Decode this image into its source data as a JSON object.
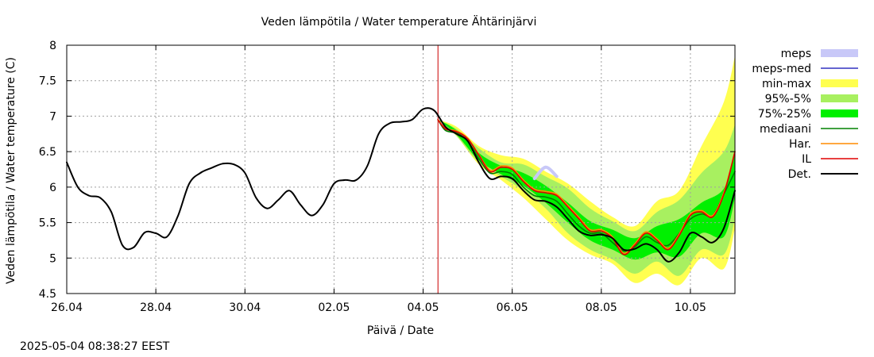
{
  "timestamp": "2025-05-04  08:38:27 EEST",
  "chart_data": {
    "type": "line",
    "title": "Veden lämpötila / Water temperature Ähtärinjärvi",
    "xlabel": "Päivä / Date",
    "ylabel": "Veden lämpötila / Water temperature (C)",
    "ylim": [
      4.5,
      8
    ],
    "xlim": [
      "2025-04-26 00:00",
      "2025-05-11 00:00"
    ],
    "x_ticks": [
      "26.04",
      "28.04",
      "30.04",
      "02.05",
      "04.05",
      "06.05",
      "08.05",
      "10.05"
    ],
    "y_ticks": [
      "4.5",
      "5",
      "5.5",
      "6",
      "6.5",
      "7",
      "7.5",
      "8"
    ],
    "grid": true,
    "legend_position": "right",
    "forecast_start": "2025-05-04 08:00",
    "colors": {
      "meps": "#c8c8f8",
      "meps_med": "#3030c0",
      "min_max": "#ffff50",
      "p95_5": "#a8f060",
      "p75_25": "#00f000",
      "mediaani": "#008000",
      "har": "#ff8c00",
      "il": "#e00000",
      "det": "#000000",
      "forecast_line": "#cc0000",
      "grid": "#a0a0a0"
    },
    "legend": [
      "meps",
      "meps-med",
      "min-max",
      "95%-5%",
      "75%-25%",
      "mediaani",
      "Har.",
      "IL",
      "Det."
    ],
    "series": [
      {
        "name": "Det.",
        "x": [
          "2025-04-26 00:00",
          "2025-04-26 06:00",
          "2025-04-26 12:00",
          "2025-04-26 18:00",
          "2025-04-27 00:00",
          "2025-04-27 06:00",
          "2025-04-27 12:00",
          "2025-04-27 18:00",
          "2025-04-28 00:00",
          "2025-04-28 06:00",
          "2025-04-28 12:00",
          "2025-04-28 18:00",
          "2025-04-29 00:00",
          "2025-04-29 06:00",
          "2025-04-29 12:00",
          "2025-04-29 18:00",
          "2025-04-30 00:00",
          "2025-04-30 06:00",
          "2025-04-30 12:00",
          "2025-04-30 18:00",
          "2025-05-01 00:00",
          "2025-05-01 06:00",
          "2025-05-01 12:00",
          "2025-05-01 18:00",
          "2025-05-02 00:00",
          "2025-05-02 06:00",
          "2025-05-02 12:00",
          "2025-05-02 18:00",
          "2025-05-03 00:00",
          "2025-05-03 06:00",
          "2025-05-03 12:00",
          "2025-05-03 18:00",
          "2025-05-04 00:00",
          "2025-05-04 06:00",
          "2025-05-04 12:00",
          "2025-05-04 18:00",
          "2025-05-05 00:00",
          "2025-05-05 06:00",
          "2025-05-05 12:00",
          "2025-05-05 18:00",
          "2025-05-06 00:00",
          "2025-05-06 06:00",
          "2025-05-06 12:00",
          "2025-05-06 18:00",
          "2025-05-07 00:00",
          "2025-05-07 06:00",
          "2025-05-07 12:00",
          "2025-05-07 18:00",
          "2025-05-08 00:00",
          "2025-05-08 06:00",
          "2025-05-08 12:00",
          "2025-05-08 18:00",
          "2025-05-09 00:00",
          "2025-05-09 06:00",
          "2025-05-09 12:00",
          "2025-05-09 18:00",
          "2025-05-10 00:00",
          "2025-05-10 06:00",
          "2025-05-10 12:00",
          "2025-05-10 18:00",
          "2025-05-11 00:00"
        ],
        "values": [
          6.35,
          6.0,
          5.88,
          5.85,
          5.65,
          5.18,
          5.15,
          5.36,
          5.35,
          5.3,
          5.6,
          6.05,
          6.2,
          6.27,
          6.33,
          6.32,
          6.2,
          5.85,
          5.7,
          5.82,
          5.95,
          5.75,
          5.6,
          5.75,
          6.05,
          6.1,
          6.1,
          6.3,
          6.75,
          6.9,
          6.92,
          6.95,
          7.1,
          7.08,
          6.85,
          6.75,
          6.65,
          6.35,
          6.12,
          6.15,
          6.12,
          5.95,
          5.82,
          5.8,
          5.72,
          5.55,
          5.38,
          5.32,
          5.33,
          5.28,
          5.12,
          5.13,
          5.2,
          5.12,
          4.95,
          5.08,
          5.35,
          5.3,
          5.22,
          5.42,
          5.95
        ]
      },
      {
        "name": "IL",
        "x": [
          "2025-05-04 08:00",
          "2025-05-04 12:00",
          "2025-05-04 18:00",
          "2025-05-05 00:00",
          "2025-05-05 06:00",
          "2025-05-05 12:00",
          "2025-05-05 18:00",
          "2025-05-06 00:00",
          "2025-05-06 06:00",
          "2025-05-06 12:00",
          "2025-05-06 18:00",
          "2025-05-07 00:00",
          "2025-05-07 06:00",
          "2025-05-07 12:00",
          "2025-05-07 18:00",
          "2025-05-08 00:00",
          "2025-05-08 06:00",
          "2025-05-08 12:00",
          "2025-05-08 18:00",
          "2025-05-09 00:00",
          "2025-05-09 06:00",
          "2025-05-09 12:00",
          "2025-05-09 18:00",
          "2025-05-10 00:00",
          "2025-05-10 06:00",
          "2025-05-10 12:00",
          "2025-05-10 18:00",
          "2025-05-11 00:00"
        ],
        "values": [
          6.95,
          6.82,
          6.78,
          6.68,
          6.45,
          6.22,
          6.28,
          6.25,
          6.08,
          5.95,
          5.92,
          5.88,
          5.72,
          5.55,
          5.38,
          5.38,
          5.28,
          5.05,
          5.18,
          5.35,
          5.25,
          5.12,
          5.32,
          5.6,
          5.65,
          5.58,
          5.9,
          6.5
        ]
      },
      {
        "name": "mediaani",
        "x": [
          "2025-05-04 08:00",
          "2025-05-04 12:00",
          "2025-05-04 18:00",
          "2025-05-05 00:00",
          "2025-05-05 06:00",
          "2025-05-05 12:00",
          "2025-05-05 18:00",
          "2025-05-06 00:00",
          "2025-05-06 06:00",
          "2025-05-06 12:00",
          "2025-05-06 18:00",
          "2025-05-07 00:00",
          "2025-05-07 06:00",
          "2025-05-07 12:00",
          "2025-05-07 18:00",
          "2025-05-08 00:00",
          "2025-05-08 06:00",
          "2025-05-08 12:00",
          "2025-05-08 18:00",
          "2025-05-09 00:00",
          "2025-05-09 06:00",
          "2025-05-09 12:00",
          "2025-05-09 18:00",
          "2025-05-10 00:00",
          "2025-05-10 06:00",
          "2025-05-10 12:00",
          "2025-05-10 18:00",
          "2025-05-11 00:00"
        ],
        "values": [
          6.95,
          6.8,
          6.76,
          6.65,
          6.4,
          6.2,
          6.22,
          6.18,
          6.0,
          5.88,
          5.86,
          5.8,
          5.62,
          5.45,
          5.35,
          5.35,
          5.22,
          5.1,
          5.16,
          5.3,
          5.22,
          5.18,
          5.35,
          5.55,
          5.62,
          5.6,
          5.9,
          6.22
        ]
      },
      {
        "name": "Har.",
        "x": [
          "2025-05-04 08:00",
          "2025-05-04 12:00",
          "2025-05-04 18:00",
          "2025-05-05 00:00",
          "2025-05-05 06:00",
          "2025-05-05 12:00",
          "2025-05-05 18:00",
          "2025-05-06 00:00",
          "2025-05-06 06:00",
          "2025-05-06 12:00",
          "2025-05-06 18:00",
          "2025-05-07 00:00",
          "2025-05-07 06:00",
          "2025-05-07 12:00",
          "2025-05-07 18:00",
          "2025-05-08 00:00",
          "2025-05-08 06:00",
          "2025-05-08 12:00",
          "2025-05-08 18:00",
          "2025-05-09 00:00",
          "2025-05-09 06:00",
          "2025-05-09 12:00",
          "2025-05-09 18:00",
          "2025-05-10 00:00",
          "2025-05-10 06:00",
          "2025-05-10 12:00",
          "2025-05-10 18:00",
          "2025-05-11 00:00"
        ],
        "values": [
          6.95,
          6.83,
          6.79,
          6.69,
          6.46,
          6.24,
          6.3,
          6.27,
          6.1,
          5.97,
          5.94,
          5.9,
          5.74,
          5.57,
          5.4,
          5.4,
          5.3,
          5.07,
          5.2,
          5.37,
          5.27,
          5.14,
          5.34,
          5.62,
          5.67,
          5.6,
          5.92,
          6.5
        ]
      },
      {
        "name": "meps",
        "x": [
          "2025-05-06 12:00",
          "2025-05-06 18:00",
          "2025-05-07 00:00"
        ],
        "values": [
          6.12,
          6.28,
          6.15
        ]
      }
    ],
    "bands": [
      {
        "name": "min-max",
        "x": [
          "2025-05-04 08:00",
          "2025-05-04 18:00",
          "2025-05-05 06:00",
          "2025-05-05 18:00",
          "2025-05-06 06:00",
          "2025-05-06 18:00",
          "2025-05-07 06:00",
          "2025-05-07 18:00",
          "2025-05-08 06:00",
          "2025-05-08 18:00",
          "2025-05-09 06:00",
          "2025-05-09 18:00",
          "2025-05-10 06:00",
          "2025-05-10 18:00",
          "2025-05-11 00:00"
        ],
        "upper": [
          6.95,
          6.85,
          6.58,
          6.45,
          6.4,
          6.22,
          6.05,
          5.8,
          5.58,
          5.45,
          5.8,
          5.95,
          6.58,
          7.2,
          7.85
        ],
        "lower": [
          6.95,
          6.72,
          6.32,
          6.1,
          5.85,
          5.55,
          5.25,
          5.05,
          4.92,
          4.65,
          4.78,
          4.62,
          5.0,
          4.85,
          5.42
        ]
      },
      {
        "name": "95%-5%",
        "x": [
          "2025-05-04 08:00",
          "2025-05-04 18:00",
          "2025-05-05 06:00",
          "2025-05-05 18:00",
          "2025-05-06 06:00",
          "2025-05-06 18:00",
          "2025-05-07 06:00",
          "2025-05-07 18:00",
          "2025-05-08 06:00",
          "2025-05-08 18:00",
          "2025-05-09 06:00",
          "2025-05-09 18:00",
          "2025-05-10 06:00",
          "2025-05-10 18:00",
          "2025-05-11 00:00"
        ],
        "upper": [
          6.95,
          6.82,
          6.55,
          6.35,
          6.32,
          6.15,
          5.98,
          5.7,
          5.52,
          5.38,
          5.65,
          5.82,
          6.2,
          6.5,
          6.88
        ],
        "lower": [
          6.95,
          6.72,
          6.35,
          6.15,
          5.95,
          5.7,
          5.35,
          5.12,
          4.98,
          4.78,
          4.95,
          4.75,
          5.12,
          5.05,
          5.55
        ]
      },
      {
        "name": "75%-25%",
        "x": [
          "2025-05-04 08:00",
          "2025-05-04 18:00",
          "2025-05-05 06:00",
          "2025-05-05 18:00",
          "2025-05-06 06:00",
          "2025-05-06 18:00",
          "2025-05-07 06:00",
          "2025-05-07 18:00",
          "2025-05-08 06:00",
          "2025-05-08 18:00",
          "2025-05-09 06:00",
          "2025-05-09 18:00",
          "2025-05-10 06:00",
          "2025-05-10 18:00",
          "2025-05-11 00:00"
        ],
        "upper": [
          6.95,
          6.8,
          6.48,
          6.3,
          6.2,
          6.02,
          5.78,
          5.52,
          5.4,
          5.28,
          5.45,
          5.55,
          5.78,
          5.98,
          6.5
        ],
        "lower": [
          6.95,
          6.74,
          6.38,
          6.18,
          6.02,
          5.78,
          5.5,
          5.25,
          5.12,
          4.98,
          5.08,
          5.02,
          5.35,
          5.3,
          5.85
        ]
      }
    ]
  }
}
